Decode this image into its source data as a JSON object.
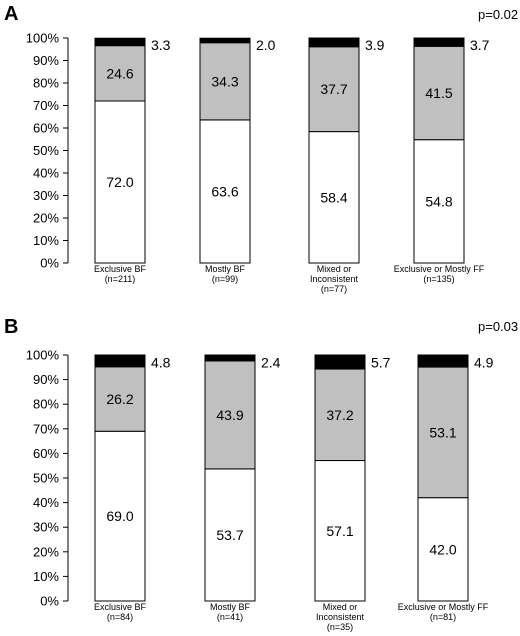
{
  "chart_data": [
    {
      "type": "bar",
      "stacked": true,
      "panel_label": "A",
      "p_value": "p=0.02",
      "ylim": [
        0,
        100
      ],
      "yticks": [
        "0%",
        "10%",
        "20%",
        "30%",
        "40%",
        "50%",
        "60%",
        "70%",
        "80%",
        "90%",
        "100%"
      ],
      "categories": [
        [
          "Exclusive BF",
          "(n=211)"
        ],
        [
          "Mostly BF",
          "(n=99)"
        ],
        [
          "Mixed or",
          "Inconsistent",
          "(n=77)"
        ],
        [
          "Exclusive or Mostly FF",
          "(n=135)"
        ]
      ],
      "series": [
        {
          "values": [
            72.0,
            63.6,
            58.4,
            54.8
          ],
          "labels": [
            "72.0",
            "63.6",
            "58.4",
            "54.8"
          ],
          "color": "#ffffff"
        },
        {
          "values": [
            24.6,
            34.3,
            37.7,
            41.5
          ],
          "labels": [
            "24.6",
            "34.3",
            "37.7",
            "41.5"
          ],
          "color": "#c0c0c0"
        },
        {
          "values": [
            3.3,
            2.0,
            3.9,
            3.7
          ],
          "labels": [
            "3.3",
            "2.0",
            "3.9",
            "3.7"
          ],
          "color": "#000000"
        }
      ]
    },
    {
      "type": "bar",
      "stacked": true,
      "panel_label": "B",
      "p_value": "p=0.03",
      "ylim": [
        0,
        100
      ],
      "yticks": [
        "0%",
        "10%",
        "20%",
        "30%",
        "40%",
        "50%",
        "60%",
        "70%",
        "80%",
        "90%",
        "100%"
      ],
      "categories": [
        [
          "Exclusive BF",
          "(n=84)"
        ],
        [
          "Mostly BF",
          "(n=41)"
        ],
        [
          "Mixed or",
          "Inconsistent",
          "(n=35)"
        ],
        [
          "Exclusive or Mostly FF",
          "(n=81)"
        ]
      ],
      "series": [
        {
          "values": [
            69.0,
            53.7,
            57.1,
            42.0
          ],
          "labels": [
            "69.0",
            "53.7",
            "57.1",
            "42.0"
          ],
          "color": "#ffffff"
        },
        {
          "values": [
            26.2,
            43.9,
            37.2,
            53.1
          ],
          "labels": [
            "26.2",
            "43.9",
            "37.2",
            "53.1"
          ],
          "color": "#c0c0c0"
        },
        {
          "values": [
            4.8,
            2.4,
            5.7,
            4.9
          ],
          "labels": [
            "4.8",
            "2.4",
            "5.7",
            "4.9"
          ],
          "color": "#000000"
        }
      ]
    }
  ]
}
